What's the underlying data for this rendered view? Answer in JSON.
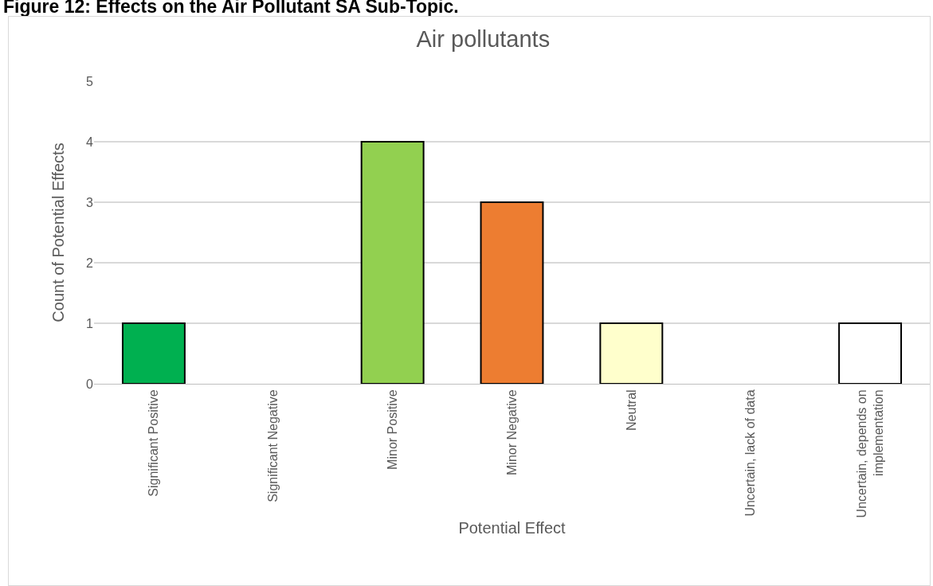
{
  "chart_data": {
    "type": "bar",
    "title": "Air pollutants",
    "annotations": [
      "Figure 12: Effects on the Air Pollutant SA Sub-Topic."
    ],
    "xlabel": "Potential Effect",
    "ylabel": "Count of Potential Effects",
    "categories": [
      "Significant Positive",
      "Significant Negative",
      "Minor Positive",
      "Minor Negative",
      "Neutral",
      "Uncertain, lack of data",
      "Uncertain, depends on implementation"
    ],
    "values": [
      1,
      0,
      4,
      3,
      1,
      0,
      1
    ],
    "colors": [
      "#00b050",
      null,
      "#92d050",
      "#ed7d31",
      "#ffffcc",
      null,
      "#ffffff"
    ],
    "ylim": [
      0,
      5
    ],
    "yticks": [
      0,
      1,
      2,
      3,
      4,
      5
    ],
    "grid": "y"
  }
}
